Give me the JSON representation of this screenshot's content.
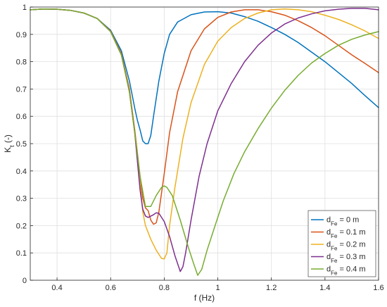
{
  "chart_data": {
    "type": "line",
    "xlabel": "f (Hz)",
    "ylabel": {
      "base": "K",
      "sub": "t",
      "suffix": " (-)"
    },
    "xlim": [
      0.3,
      1.6
    ],
    "ylim": [
      0,
      1
    ],
    "xticks": [
      0.4,
      0.6,
      0.8,
      1.0,
      1.2,
      1.4,
      1.6
    ],
    "xtick_labels": [
      "0.4",
      "0.6",
      "0.8",
      "1",
      "1.2",
      "1.4",
      "1.6"
    ],
    "yticks": [
      0,
      0.1,
      0.2,
      0.3,
      0.4,
      0.5,
      0.6,
      0.7,
      0.8,
      0.9,
      1.0
    ],
    "ytick_labels": [
      "0",
      "0.1",
      "0.2",
      "0.3",
      "0.4",
      "0.5",
      "0.6",
      "0.7",
      "0.8",
      "0.9",
      "1"
    ],
    "grid": true,
    "legend_position": "bottom-right",
    "series": [
      {
        "name": "d_Fe = 0 m",
        "label": {
          "base": "d",
          "sub": "Fe",
          "suffix": " = 0 m"
        },
        "color": "#0072BD",
        "points": [
          [
            0.3,
            0.99
          ],
          [
            0.35,
            0.993
          ],
          [
            0.4,
            0.992
          ],
          [
            0.45,
            0.988
          ],
          [
            0.5,
            0.978
          ],
          [
            0.55,
            0.958
          ],
          [
            0.6,
            0.915
          ],
          [
            0.64,
            0.84
          ],
          [
            0.67,
            0.73
          ],
          [
            0.69,
            0.63
          ],
          [
            0.7,
            0.585
          ],
          [
            0.71,
            0.55
          ],
          [
            0.72,
            0.51
          ],
          [
            0.73,
            0.5
          ],
          [
            0.74,
            0.5
          ],
          [
            0.75,
            0.53
          ],
          [
            0.76,
            0.6
          ],
          [
            0.78,
            0.73
          ],
          [
            0.8,
            0.83
          ],
          [
            0.82,
            0.9
          ],
          [
            0.85,
            0.945
          ],
          [
            0.9,
            0.972
          ],
          [
            0.95,
            0.982
          ],
          [
            1.0,
            0.983
          ],
          [
            1.05,
            0.978
          ],
          [
            1.1,
            0.965
          ],
          [
            1.15,
            0.948
          ],
          [
            1.2,
            0.925
          ],
          [
            1.25,
            0.9
          ],
          [
            1.3,
            0.87
          ],
          [
            1.35,
            0.835
          ],
          [
            1.4,
            0.8
          ],
          [
            1.45,
            0.76
          ],
          [
            1.5,
            0.72
          ],
          [
            1.55,
            0.675
          ],
          [
            1.6,
            0.632
          ]
        ]
      },
      {
        "name": "d_Fe = 0.1 m",
        "label": {
          "base": "d",
          "sub": "Fe",
          "suffix": " = 0.1 m"
        },
        "color": "#D95319",
        "points": [
          [
            0.3,
            0.99
          ],
          [
            0.35,
            0.993
          ],
          [
            0.4,
            0.992
          ],
          [
            0.45,
            0.988
          ],
          [
            0.5,
            0.978
          ],
          [
            0.55,
            0.958
          ],
          [
            0.6,
            0.912
          ],
          [
            0.64,
            0.83
          ],
          [
            0.67,
            0.7
          ],
          [
            0.69,
            0.55
          ],
          [
            0.71,
            0.38
          ],
          [
            0.72,
            0.3
          ],
          [
            0.73,
            0.265
          ],
          [
            0.74,
            0.255
          ],
          [
            0.75,
            0.22
          ],
          [
            0.76,
            0.205
          ],
          [
            0.77,
            0.21
          ],
          [
            0.78,
            0.25
          ],
          [
            0.8,
            0.39
          ],
          [
            0.82,
            0.54
          ],
          [
            0.85,
            0.69
          ],
          [
            0.9,
            0.84
          ],
          [
            0.95,
            0.92
          ],
          [
            1.0,
            0.962
          ],
          [
            1.05,
            0.982
          ],
          [
            1.1,
            0.99
          ],
          [
            1.15,
            0.99
          ],
          [
            1.2,
            0.983
          ],
          [
            1.25,
            0.97
          ],
          [
            1.3,
            0.95
          ],
          [
            1.35,
            0.925
          ],
          [
            1.4,
            0.895
          ],
          [
            1.45,
            0.86
          ],
          [
            1.5,
            0.825
          ],
          [
            1.55,
            0.793
          ],
          [
            1.6,
            0.76
          ]
        ]
      },
      {
        "name": "d_Fe = 0.2 m",
        "label": {
          "base": "d",
          "sub": "Fe",
          "suffix": " = 0.2 m"
        },
        "color": "#EDB120",
        "points": [
          [
            0.3,
            0.99
          ],
          [
            0.35,
            0.993
          ],
          [
            0.4,
            0.992
          ],
          [
            0.45,
            0.988
          ],
          [
            0.5,
            0.978
          ],
          [
            0.55,
            0.958
          ],
          [
            0.6,
            0.91
          ],
          [
            0.64,
            0.825
          ],
          [
            0.67,
            0.69
          ],
          [
            0.69,
            0.54
          ],
          [
            0.71,
            0.35
          ],
          [
            0.72,
            0.25
          ],
          [
            0.73,
            0.2
          ],
          [
            0.75,
            0.15
          ],
          [
            0.77,
            0.11
          ],
          [
            0.79,
            0.08
          ],
          [
            0.8,
            0.078
          ],
          [
            0.81,
            0.1
          ],
          [
            0.82,
            0.2
          ],
          [
            0.84,
            0.34
          ],
          [
            0.87,
            0.52
          ],
          [
            0.9,
            0.65
          ],
          [
            0.95,
            0.79
          ],
          [
            1.0,
            0.875
          ],
          [
            1.05,
            0.925
          ],
          [
            1.1,
            0.958
          ],
          [
            1.15,
            0.978
          ],
          [
            1.2,
            0.99
          ],
          [
            1.25,
            0.993
          ],
          [
            1.3,
            0.99
          ],
          [
            1.35,
            0.983
          ],
          [
            1.4,
            0.97
          ],
          [
            1.45,
            0.955
          ],
          [
            1.5,
            0.935
          ],
          [
            1.55,
            0.912
          ],
          [
            1.6,
            0.885
          ]
        ]
      },
      {
        "name": "d_Fe = 0.3 m",
        "label": {
          "base": "d",
          "sub": "Fe",
          "suffix": " = 0.3 m"
        },
        "color": "#7E2F8E",
        "points": [
          [
            0.3,
            0.99
          ],
          [
            0.35,
            0.993
          ],
          [
            0.4,
            0.992
          ],
          [
            0.45,
            0.988
          ],
          [
            0.5,
            0.978
          ],
          [
            0.55,
            0.958
          ],
          [
            0.6,
            0.91
          ],
          [
            0.64,
            0.825
          ],
          [
            0.67,
            0.69
          ],
          [
            0.69,
            0.54
          ],
          [
            0.71,
            0.33
          ],
          [
            0.72,
            0.26
          ],
          [
            0.73,
            0.235
          ],
          [
            0.74,
            0.23
          ],
          [
            0.76,
            0.24
          ],
          [
            0.77,
            0.247
          ],
          [
            0.78,
            0.245
          ],
          [
            0.8,
            0.215
          ],
          [
            0.82,
            0.16
          ],
          [
            0.84,
            0.09
          ],
          [
            0.86,
            0.032
          ],
          [
            0.87,
            0.05
          ],
          [
            0.88,
            0.1
          ],
          [
            0.9,
            0.22
          ],
          [
            0.93,
            0.38
          ],
          [
            0.96,
            0.5
          ],
          [
            1.0,
            0.62
          ],
          [
            1.05,
            0.72
          ],
          [
            1.1,
            0.8
          ],
          [
            1.15,
            0.86
          ],
          [
            1.2,
            0.905
          ],
          [
            1.25,
            0.938
          ],
          [
            1.3,
            0.96
          ],
          [
            1.35,
            0.975
          ],
          [
            1.4,
            0.986
          ],
          [
            1.45,
            0.992
          ],
          [
            1.5,
            0.995
          ],
          [
            1.55,
            0.995
          ],
          [
            1.6,
            0.99
          ]
        ]
      },
      {
        "name": "d_Fe = 0.4 m",
        "label": {
          "base": "d",
          "sub": "Fe",
          "suffix": " = 0.4 m"
        },
        "color": "#77AC30",
        "points": [
          [
            0.3,
            0.99
          ],
          [
            0.35,
            0.993
          ],
          [
            0.4,
            0.992
          ],
          [
            0.45,
            0.988
          ],
          [
            0.5,
            0.978
          ],
          [
            0.55,
            0.958
          ],
          [
            0.6,
            0.91
          ],
          [
            0.64,
            0.825
          ],
          [
            0.67,
            0.69
          ],
          [
            0.69,
            0.54
          ],
          [
            0.71,
            0.38
          ],
          [
            0.73,
            0.27
          ],
          [
            0.75,
            0.27
          ],
          [
            0.77,
            0.31
          ],
          [
            0.79,
            0.34
          ],
          [
            0.8,
            0.345
          ],
          [
            0.81,
            0.34
          ],
          [
            0.83,
            0.31
          ],
          [
            0.86,
            0.22
          ],
          [
            0.89,
            0.12
          ],
          [
            0.91,
            0.06
          ],
          [
            0.925,
            0.018
          ],
          [
            0.94,
            0.04
          ],
          [
            0.96,
            0.11
          ],
          [
            0.99,
            0.2
          ],
          [
            1.02,
            0.29
          ],
          [
            1.06,
            0.39
          ],
          [
            1.1,
            0.47
          ],
          [
            1.15,
            0.555
          ],
          [
            1.2,
            0.63
          ],
          [
            1.25,
            0.695
          ],
          [
            1.3,
            0.75
          ],
          [
            1.35,
            0.795
          ],
          [
            1.4,
            0.83
          ],
          [
            1.45,
            0.86
          ],
          [
            1.5,
            0.882
          ],
          [
            1.55,
            0.898
          ],
          [
            1.6,
            0.91
          ]
        ]
      }
    ]
  }
}
